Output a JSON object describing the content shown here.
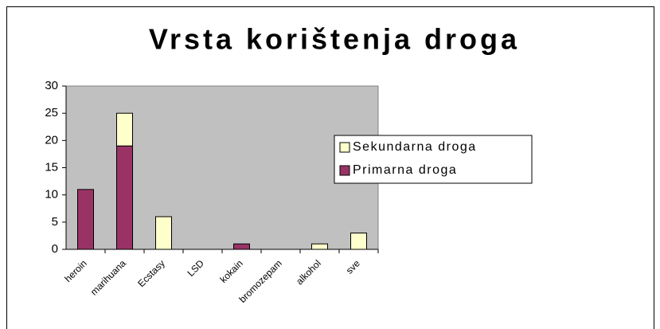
{
  "chart_data": {
    "type": "stacked_bar",
    "title": "Vrsta korištenja droga",
    "categories": [
      "heroin",
      "marihuana",
      "Ecstasy",
      "LSD",
      "kokain",
      "bromozepam",
      "alkohol",
      "sve"
    ],
    "series": [
      {
        "name": "Primarna droga",
        "color": "#993366",
        "values": [
          11,
          19,
          0,
          0,
          1,
          0,
          0,
          0
        ]
      },
      {
        "name": "Sekundarna droga",
        "color": "#ffffcc",
        "values": [
          0,
          6,
          6,
          0,
          0,
          0,
          1,
          3
        ]
      }
    ],
    "ylim": [
      0,
      30
    ],
    "yticks": [
      0,
      5,
      10,
      15,
      20,
      25,
      30
    ],
    "grid": false,
    "legend": "right",
    "plot_background": "#c0c0c0"
  }
}
